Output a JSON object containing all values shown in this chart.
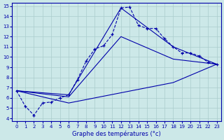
{
  "title": "Graphe des températures (°c)",
  "background_color": "#cce8e8",
  "line_color": "#0000aa",
  "grid_color": "#aacccc",
  "ylim": [
    4,
    15
  ],
  "xlim": [
    -0.5,
    23.5
  ],
  "ytick_vals": [
    4,
    5,
    6,
    7,
    8,
    9,
    10,
    11,
    12,
    13,
    14,
    15
  ],
  "xtick_vals": [
    0,
    1,
    2,
    3,
    4,
    5,
    6,
    7,
    8,
    9,
    10,
    11,
    12,
    13,
    14,
    15,
    16,
    17,
    18,
    19,
    20,
    21,
    22,
    23
  ],
  "main_series": {
    "x": [
      0,
      1,
      2,
      3,
      4,
      5,
      6,
      7,
      8,
      9,
      10,
      11,
      12,
      13,
      14,
      15,
      16,
      17,
      18,
      19,
      20,
      21,
      22,
      23
    ],
    "y": [
      6.7,
      5.2,
      4.3,
      5.5,
      5.6,
      6.0,
      6.3,
      7.8,
      9.6,
      10.8,
      11.1,
      12.2,
      14.8,
      14.9,
      13.1,
      12.8,
      12.8,
      11.8,
      11.0,
      10.4,
      10.4,
      10.1,
      9.5,
      9.3
    ]
  },
  "smooth_series": [
    {
      "x": [
        0,
        6,
        12,
        18,
        23
      ],
      "y": [
        6.7,
        6.3,
        14.8,
        11.0,
        9.3
      ]
    },
    {
      "x": [
        0,
        6,
        12,
        18,
        23
      ],
      "y": [
        6.7,
        6.1,
        12.0,
        9.8,
        9.3
      ]
    },
    {
      "x": [
        0,
        6,
        12,
        18,
        23
      ],
      "y": [
        6.7,
        5.5,
        6.5,
        7.5,
        9.3
      ]
    }
  ],
  "figsize": [
    3.2,
    2.0
  ],
  "dpi": 100
}
